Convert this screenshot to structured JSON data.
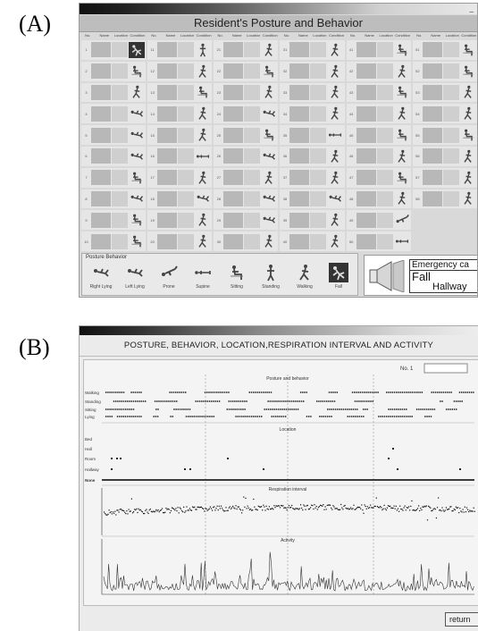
{
  "labels": {
    "a": "(A)",
    "b": "(B)"
  },
  "panel_a": {
    "title": "Resident's Posture and Behavior",
    "minimize": "_",
    "columns": [
      "No.",
      "Name",
      "Location",
      "Condition"
    ],
    "grid": [
      [
        {
          "num": "1",
          "icon": "fall-icon",
          "dark": true
        },
        {
          "num": "11",
          "icon": "standing-icon"
        },
        {
          "num": "21",
          "icon": "walking-icon"
        },
        {
          "num": "31",
          "icon": "walking-icon"
        },
        {
          "num": "41",
          "icon": "sitting-icon"
        },
        {
          "num": "51",
          "icon": "sitting-icon"
        }
      ],
      [
        {
          "num": "2",
          "icon": "sitting-icon"
        },
        {
          "num": "12",
          "icon": "walking-icon"
        },
        {
          "num": "22",
          "icon": "sitting-icon"
        },
        {
          "num": "32",
          "icon": "walking-icon"
        },
        {
          "num": "42",
          "icon": "walking-icon"
        },
        {
          "num": "52",
          "icon": "sitting-icon"
        }
      ],
      [
        {
          "num": "3",
          "icon": "walking-icon"
        },
        {
          "num": "13",
          "icon": "sitting-icon"
        },
        {
          "num": "23",
          "icon": "walking-icon"
        },
        {
          "num": "33",
          "icon": "walking-icon"
        },
        {
          "num": "43",
          "icon": "sitting-icon"
        },
        {
          "num": "53",
          "icon": "walking-icon"
        }
      ],
      [
        {
          "num": "4",
          "icon": "lying-side-icon"
        },
        {
          "num": "14",
          "icon": "walking-icon"
        },
        {
          "num": "24",
          "icon": "lying-side-icon"
        },
        {
          "num": "34",
          "icon": "walking-icon"
        },
        {
          "num": "44",
          "icon": "walking-icon"
        },
        {
          "num": "54",
          "icon": "walking-icon"
        }
      ],
      [
        {
          "num": "5",
          "icon": "lying-side-icon"
        },
        {
          "num": "15",
          "icon": "walking-icon"
        },
        {
          "num": "25",
          "icon": "sitting-icon"
        },
        {
          "num": "35",
          "icon": "supine-icon"
        },
        {
          "num": "45",
          "icon": "sitting-icon"
        },
        {
          "num": "55",
          "icon": "sitting-icon"
        }
      ],
      [
        {
          "num": "6",
          "icon": "lying-side-icon"
        },
        {
          "num": "16",
          "icon": "supine-icon"
        },
        {
          "num": "26",
          "icon": "lying-side-icon"
        },
        {
          "num": "36",
          "icon": "walking-icon"
        },
        {
          "num": "46",
          "icon": "walking-icon"
        },
        {
          "num": "56",
          "icon": "walking-icon"
        }
      ],
      [
        {
          "num": "7",
          "icon": "sitting-icon"
        },
        {
          "num": "17",
          "icon": "walking-icon"
        },
        {
          "num": "27",
          "icon": "walking-icon"
        },
        {
          "num": "37",
          "icon": "walking-icon"
        },
        {
          "num": "47",
          "icon": "sitting-icon"
        },
        {
          "num": "57",
          "icon": "walking-icon"
        }
      ],
      [
        {
          "num": "8",
          "icon": "lying-side-icon"
        },
        {
          "num": "18",
          "icon": "lying-side-icon"
        },
        {
          "num": "28",
          "icon": "lying-side-icon"
        },
        {
          "num": "38",
          "icon": "lying-side-icon"
        },
        {
          "num": "48",
          "icon": "walking-icon"
        },
        {
          "num": "58",
          "icon": "walking-icon"
        }
      ],
      [
        {
          "num": "9",
          "icon": "sitting-icon"
        },
        {
          "num": "19",
          "icon": "walking-icon"
        },
        {
          "num": "29",
          "icon": "lying-side-icon"
        },
        {
          "num": "39",
          "icon": "walking-icon"
        },
        {
          "num": "49",
          "icon": "prone-icon"
        },
        null
      ],
      [
        {
          "num": "10",
          "icon": "sitting-icon"
        },
        {
          "num": "20",
          "icon": "walking-icon"
        },
        {
          "num": "30",
          "icon": "walking-icon"
        },
        {
          "num": "40",
          "icon": "walking-icon"
        },
        {
          "num": "50",
          "icon": "supine-icon"
        },
        null
      ]
    ],
    "legend": {
      "title": "Posture Behavior",
      "items": [
        {
          "label": "Right Lying",
          "icon": "lying-side-icon"
        },
        {
          "label": "Left Lying",
          "icon": "lying-side-icon"
        },
        {
          "label": "Prone",
          "icon": "prone-icon"
        },
        {
          "label": "Supine",
          "icon": "supine-icon"
        },
        {
          "label": "Sitting",
          "icon": "sitting-icon"
        },
        {
          "label": "Standing",
          "icon": "standing-icon"
        },
        {
          "label": "Walking",
          "icon": "walking-icon"
        },
        {
          "label": "Fall",
          "icon": "fall-icon",
          "dark": true
        }
      ]
    },
    "alert": {
      "line1": "Emergency ca",
      "line2": "Fall",
      "line3": "Hallway",
      "icon": "speaker-icon"
    }
  },
  "panel_b": {
    "title": "POSTURE, BEHAVIOR, LOCATION,RESPIRATION INTERVAL AND  ACTIVITY",
    "no_label": "No. 1",
    "return_label": "return",
    "chart_data": [
      {
        "type": "scatter",
        "title": "Posture and behavior",
        "categories": [
          "Walking",
          "Standing",
          "Sitting",
          "Lying"
        ],
        "colors": {
          "points": "#222222"
        }
      },
      {
        "type": "scatter",
        "title": "Location",
        "categories": [
          "Bed",
          "Hall",
          "Room",
          "Hallway",
          "None"
        ],
        "colors": {
          "points": "#222222"
        }
      },
      {
        "type": "scatter",
        "title": "Respiration interval",
        "colors": {
          "points": "#111111"
        }
      },
      {
        "type": "line",
        "title": "Activity",
        "colors": {
          "line": "#333333"
        }
      }
    ]
  }
}
